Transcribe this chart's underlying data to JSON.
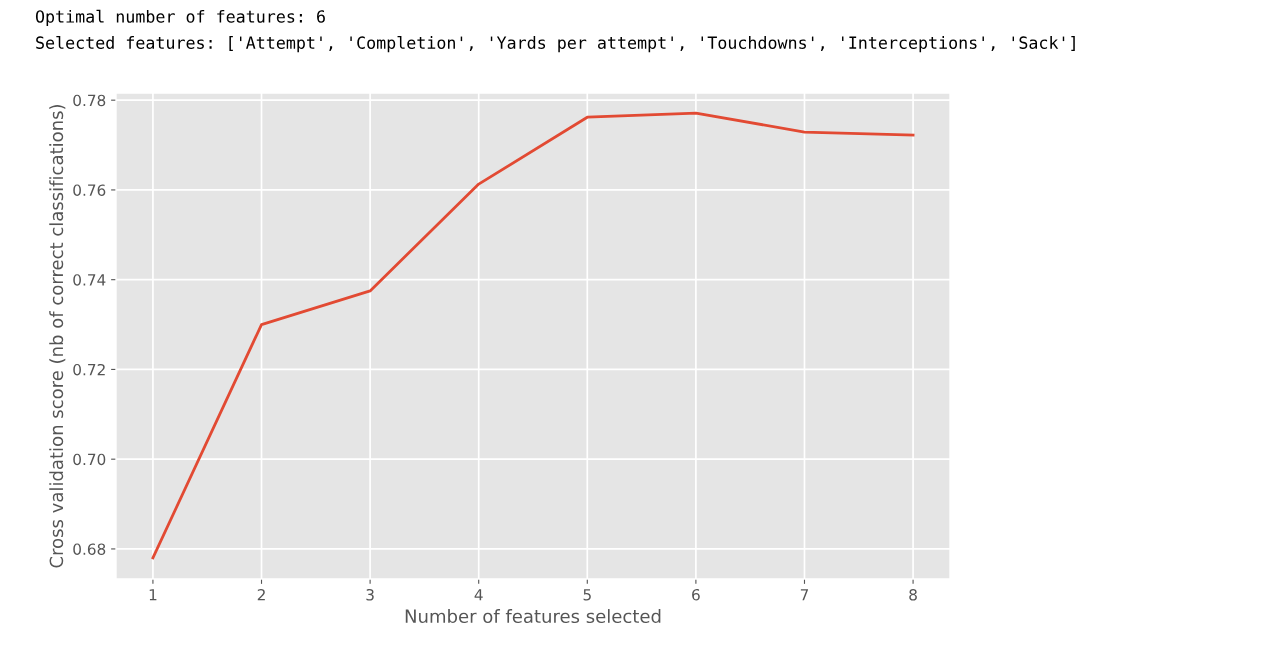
{
  "chart_data": {
    "type": "line",
    "annotations": [
      "Optimal number of features: 6",
      "Selected features: ['Attempt', 'Completion', 'Yards per attempt', 'Touchdowns', 'Interceptions', 'Sack']"
    ],
    "xlabel": "Number of features selected",
    "ylabel": "Cross validation score (nb of correct classifications)",
    "x": [
      1,
      2,
      3,
      4,
      5,
      6,
      7,
      8
    ],
    "series": [
      {
        "color": "#e24a33",
        "values": [
          0.678,
          0.73,
          0.7375,
          0.7613,
          0.7762,
          0.7771,
          0.7729,
          0.7722
        ]
      }
    ],
    "xlim": [
      0.66,
      8.34
    ],
    "ylim": [
      0.6733,
      0.7816
    ],
    "xticks": [
      1,
      2,
      3,
      4,
      5,
      6,
      7,
      8
    ],
    "yticks": [
      {
        "value": 0.68,
        "label": "0.68"
      },
      {
        "value": 0.7,
        "label": "0.70"
      },
      {
        "value": 0.72,
        "label": "0.72"
      },
      {
        "value": 0.74,
        "label": "0.74"
      },
      {
        "value": 0.76,
        "label": "0.76"
      },
      {
        "value": 0.78,
        "label": "0.78"
      }
    ],
    "grid": true,
    "legend": false
  }
}
